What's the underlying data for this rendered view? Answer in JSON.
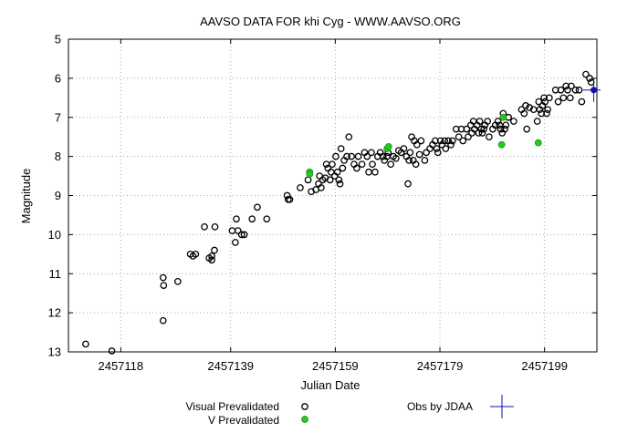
{
  "chart_data": {
    "type": "scatter",
    "title": "AAVSO DATA FOR khi Cyg - WWW.AAVSO.ORG",
    "xlabel": "Julian Date",
    "ylabel": "Magnitude",
    "xlim": [
      2457108,
      2457209
    ],
    "ylim": [
      13,
      5
    ],
    "y_inverted": true,
    "xticks": [
      2457118,
      2457139,
      2457159,
      2457179,
      2457199
    ],
    "yticks": [
      5,
      6,
      7,
      8,
      9,
      10,
      11,
      12,
      13
    ],
    "grid": true,
    "colors": {
      "visual": "#000000",
      "v": "#22cc22",
      "v_edge": "#229922",
      "obs": "#1111aa",
      "grid": "#aaaaaa"
    },
    "legend": [
      {
        "label": "Visual Prevalidated",
        "marker": "circle-open"
      },
      {
        "label": "V Prevalidated",
        "marker": "circle-green"
      },
      {
        "label": "Obs by JDAA",
        "marker": "cross-blue"
      }
    ],
    "series": [
      {
        "name": "Visual Prevalidated",
        "points": [
          [
            2457111.3,
            12.8
          ],
          [
            2457116.3,
            13.0
          ],
          [
            2457126.1,
            11.1
          ],
          [
            2457126.2,
            11.3
          ],
          [
            2457126.1,
            12.2
          ],
          [
            2457128.9,
            11.2
          ],
          [
            2457131.3,
            10.5
          ],
          [
            2457131.8,
            10.55
          ],
          [
            2457132.3,
            10.5
          ],
          [
            2457134.0,
            9.8
          ],
          [
            2457134.9,
            10.6
          ],
          [
            2457135.4,
            10.55
          ],
          [
            2457135.4,
            10.65
          ],
          [
            2457135.9,
            10.4
          ],
          [
            2457136.0,
            9.8
          ],
          [
            2457139.3,
            9.9
          ],
          [
            2457139.9,
            10.2
          ],
          [
            2457140.1,
            9.6
          ],
          [
            2457140.4,
            9.9
          ],
          [
            2457141.1,
            10.0
          ],
          [
            2457141.6,
            10.0
          ],
          [
            2457143.1,
            9.6
          ],
          [
            2457144.1,
            9.3
          ],
          [
            2457145.9,
            9.6
          ],
          [
            2457149.8,
            9.0
          ],
          [
            2457150.0,
            9.1
          ],
          [
            2457150.3,
            9.1
          ],
          [
            2457152.3,
            8.8
          ],
          [
            2457153.8,
            8.6
          ],
          [
            2457154.4,
            8.9
          ],
          [
            2457155.3,
            8.85
          ],
          [
            2457155.8,
            8.7
          ],
          [
            2457156.0,
            8.5
          ],
          [
            2457156.3,
            8.8
          ],
          [
            2457156.6,
            8.6
          ],
          [
            2457157.1,
            8.55
          ],
          [
            2457157.3,
            8.2
          ],
          [
            2457157.6,
            8.3
          ],
          [
            2457158.0,
            8.6
          ],
          [
            2457158.2,
            8.4
          ],
          [
            2457158.4,
            8.2
          ],
          [
            2457158.9,
            8.5
          ],
          [
            2457159.1,
            8.0
          ],
          [
            2457159.4,
            8.4
          ],
          [
            2457159.7,
            8.6
          ],
          [
            2457159.9,
            8.7
          ],
          [
            2457160.1,
            7.8
          ],
          [
            2457160.4,
            8.3
          ],
          [
            2457160.7,
            8.1
          ],
          [
            2457161.2,
            8.0
          ],
          [
            2457161.6,
            7.5
          ],
          [
            2457162.1,
            8.0
          ],
          [
            2457162.6,
            8.2
          ],
          [
            2457163.1,
            8.3
          ],
          [
            2457163.4,
            8.0
          ],
          [
            2457164.1,
            8.2
          ],
          [
            2457164.6,
            7.9
          ],
          [
            2457165.1,
            8.0
          ],
          [
            2457165.4,
            8.4
          ],
          [
            2457165.9,
            7.9
          ],
          [
            2457166.1,
            8.2
          ],
          [
            2457166.6,
            8.4
          ],
          [
            2457167.1,
            8.0
          ],
          [
            2457167.6,
            7.9
          ],
          [
            2457168.1,
            8.0
          ],
          [
            2457168.4,
            8.1
          ],
          [
            2457168.9,
            8.0
          ],
          [
            2457169.1,
            7.9
          ],
          [
            2457169.6,
            8.2
          ],
          [
            2457170.1,
            8.0
          ],
          [
            2457170.6,
            8.05
          ],
          [
            2457171.1,
            7.85
          ],
          [
            2457171.6,
            7.9
          ],
          [
            2457172.1,
            7.8
          ],
          [
            2457172.6,
            8.0
          ],
          [
            2457172.9,
            8.7
          ],
          [
            2457173.1,
            8.1
          ],
          [
            2457173.3,
            7.9
          ],
          [
            2457173.6,
            7.5
          ],
          [
            2457173.9,
            8.1
          ],
          [
            2457174.1,
            7.6
          ],
          [
            2457174.4,
            8.2
          ],
          [
            2457174.6,
            7.7
          ],
          [
            2457175.1,
            7.95
          ],
          [
            2457175.4,
            7.6
          ],
          [
            2457176.1,
            8.1
          ],
          [
            2457176.4,
            7.9
          ],
          [
            2457177.1,
            7.8
          ],
          [
            2457177.6,
            7.7
          ],
          [
            2457178.1,
            7.6
          ],
          [
            2457178.4,
            7.8
          ],
          [
            2457178.6,
            7.9
          ],
          [
            2457179.1,
            7.6
          ],
          [
            2457179.4,
            7.7
          ],
          [
            2457179.9,
            7.6
          ],
          [
            2457180.1,
            7.8
          ],
          [
            2457180.6,
            7.6
          ],
          [
            2457181.1,
            7.7
          ],
          [
            2457181.4,
            7.6
          ],
          [
            2457182.1,
            7.3
          ],
          [
            2457182.6,
            7.5
          ],
          [
            2457183.1,
            7.3
          ],
          [
            2457183.4,
            7.6
          ],
          [
            2457184.1,
            7.3
          ],
          [
            2457184.4,
            7.5
          ],
          [
            2457184.9,
            7.2
          ],
          [
            2457185.1,
            7.4
          ],
          [
            2457185.4,
            7.1
          ],
          [
            2457185.6,
            7.3
          ],
          [
            2457186.1,
            7.2
          ],
          [
            2457186.4,
            7.4
          ],
          [
            2457186.6,
            7.1
          ],
          [
            2457186.9,
            7.3
          ],
          [
            2457187.1,
            7.4
          ],
          [
            2457187.4,
            7.3
          ],
          [
            2457187.6,
            7.2
          ],
          [
            2457188.1,
            7.1
          ],
          [
            2457188.4,
            7.5
          ],
          [
            2457189.1,
            7.3
          ],
          [
            2457189.6,
            7.2
          ],
          [
            2457190.1,
            7.1
          ],
          [
            2457190.4,
            7.2
          ],
          [
            2457190.6,
            7.3
          ],
          [
            2457190.9,
            7.4
          ],
          [
            2457191.1,
            6.9
          ],
          [
            2457191.4,
            7.3
          ],
          [
            2457191.6,
            7.2
          ],
          [
            2457192.1,
            7.0
          ],
          [
            2457193.1,
            7.1
          ],
          [
            2457194.6,
            6.8
          ],
          [
            2457195.1,
            6.9
          ],
          [
            2457195.4,
            6.7
          ],
          [
            2457195.6,
            7.3
          ],
          [
            2457196.1,
            6.75
          ],
          [
            2457196.9,
            6.8
          ],
          [
            2457197.6,
            7.1
          ],
          [
            2457197.9,
            6.6
          ],
          [
            2457198.1,
            6.8
          ],
          [
            2457198.4,
            6.9
          ],
          [
            2457198.6,
            6.7
          ],
          [
            2457198.9,
            6.5
          ],
          [
            2457199.1,
            6.6
          ],
          [
            2457199.4,
            6.9
          ],
          [
            2457199.6,
            6.8
          ],
          [
            2457199.9,
            6.5
          ],
          [
            2457201.1,
            6.3
          ],
          [
            2457201.6,
            6.6
          ],
          [
            2457202.1,
            6.3
          ],
          [
            2457202.6,
            6.5
          ],
          [
            2457203.1,
            6.2
          ],
          [
            2457203.4,
            6.3
          ],
          [
            2457203.9,
            6.5
          ],
          [
            2457204.1,
            6.2
          ],
          [
            2457204.9,
            6.3
          ],
          [
            2457205.6,
            6.3
          ],
          [
            2457206.1,
            6.6
          ],
          [
            2457206.9,
            5.9
          ],
          [
            2457207.6,
            6.0
          ],
          [
            2457207.9,
            6.1
          ]
        ]
      },
      {
        "name": "V Prevalidated",
        "points": [
          [
            2457154.1,
            8.4
          ],
          [
            2457154.1,
            8.45
          ],
          [
            2457168.9,
            7.8
          ],
          [
            2457169.2,
            7.75
          ],
          [
            2457190.8,
            7.7
          ],
          [
            2457191.1,
            7.0
          ],
          [
            2457197.8,
            7.65
          ]
        ]
      },
      {
        "name": "Obs by JDAA",
        "points": [
          [
            2457208.4,
            6.3
          ]
        ]
      }
    ]
  }
}
